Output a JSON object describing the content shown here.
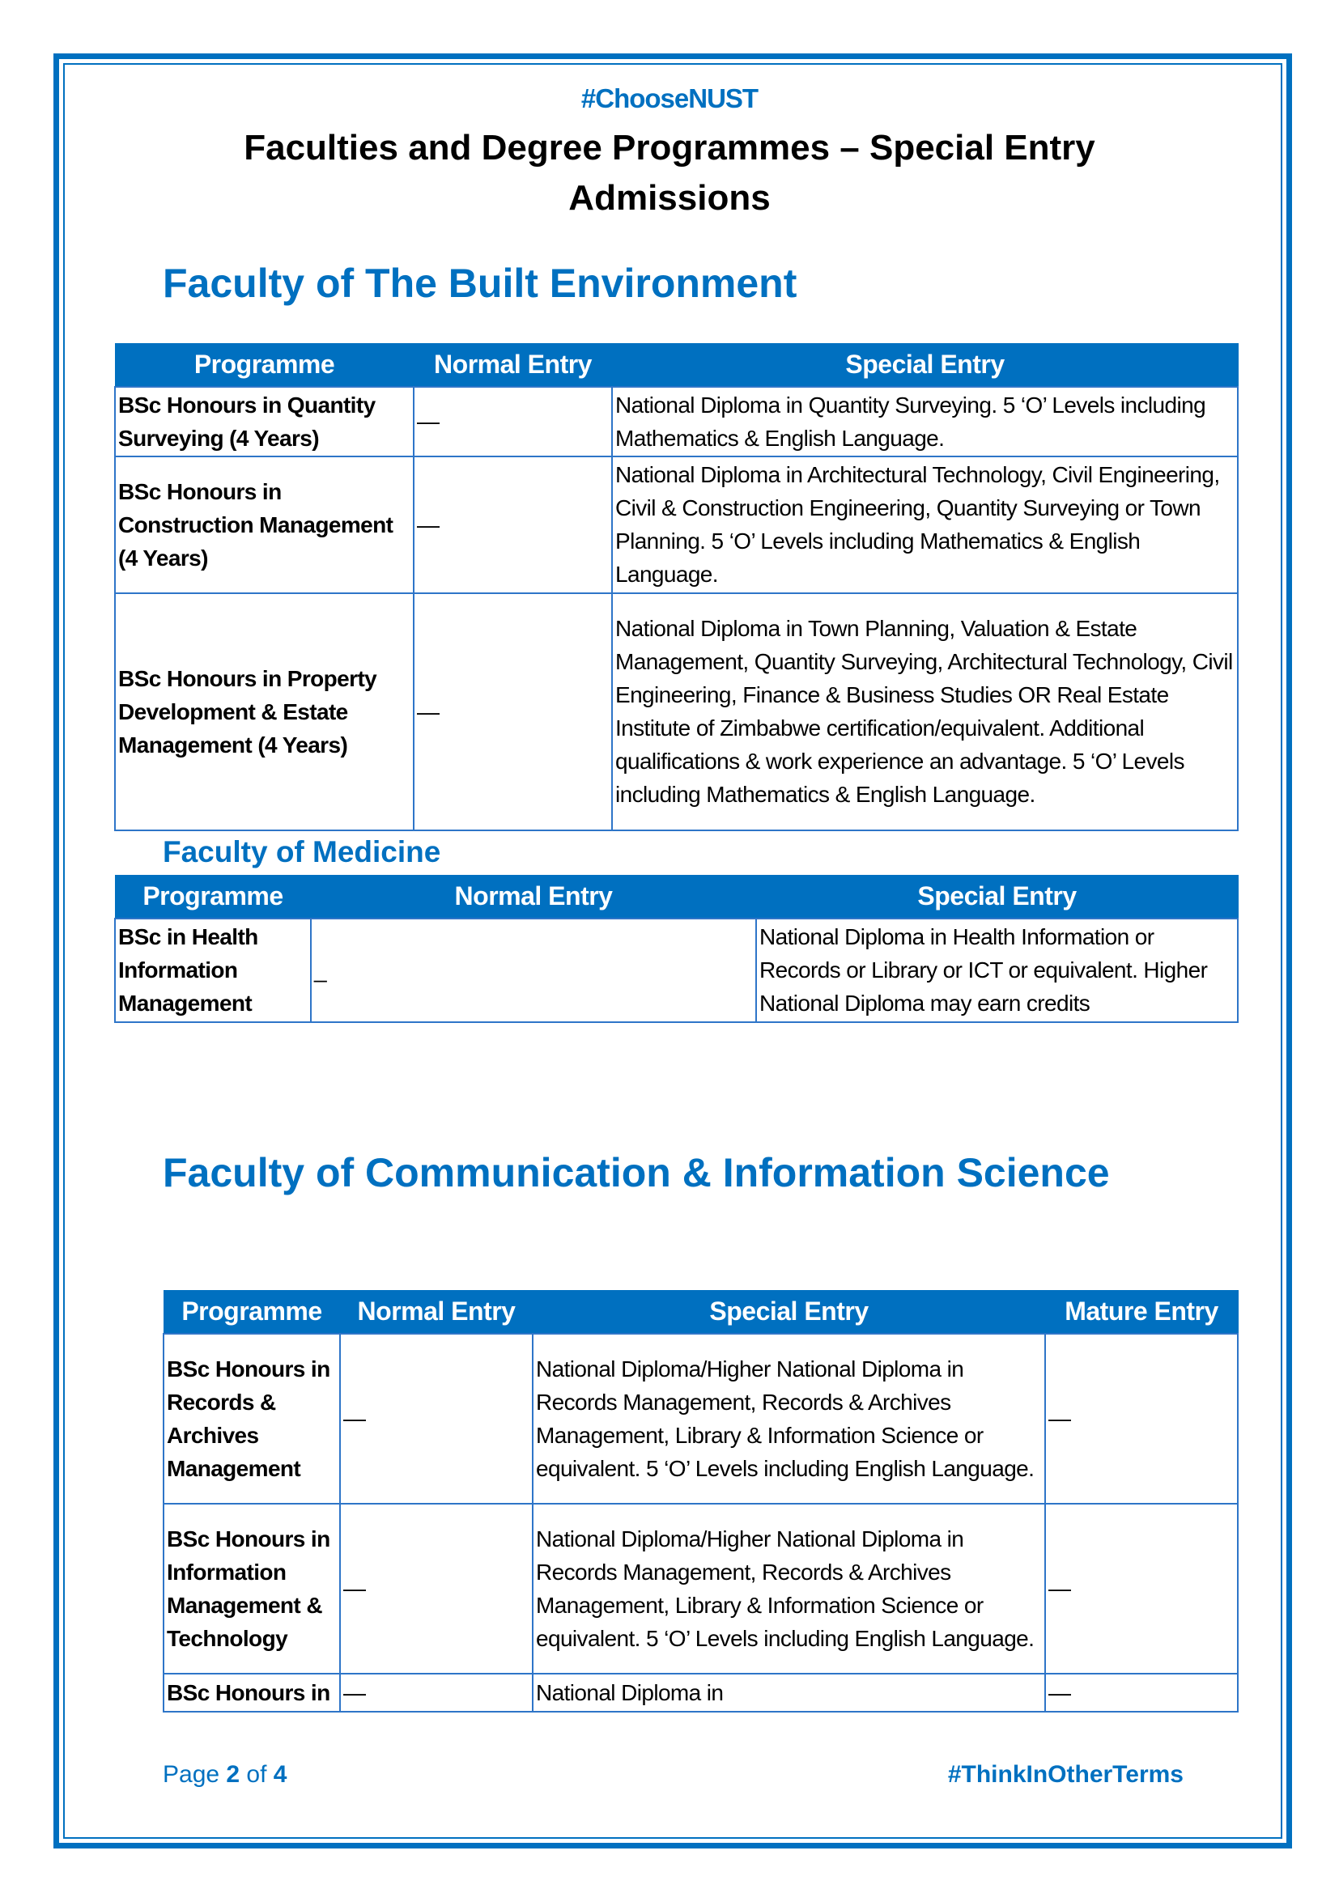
{
  "header": {
    "hashtag": "#ChooseNUST",
    "title": "Faculties and Degree Programmes – Special Entry Admissions"
  },
  "built_env": {
    "heading": "Faculty of The Built Environment",
    "columns": [
      "Programme",
      "Normal Entry",
      "Special Entry"
    ],
    "rows": [
      {
        "programme": "BSc Honours in Quantity Surveying (4 Years)",
        "normal": "—",
        "special": "National Diploma in Quantity Surveying. 5 ‘O’ Levels including Mathematics & English Language."
      },
      {
        "programme": "BSc Honours in Construction Management (4 Years)",
        "normal": "—",
        "special": "National Diploma in Architectural Technology, Civil Engineering, Civil & Construction Engineering, Quantity Surveying or Town Planning. 5 ‘O’ Levels including Mathematics & English Language."
      },
      {
        "programme": "BSc Honours in Property Development & Estate Management (4 Years)",
        "normal": "—",
        "special": "National Diploma in Town Planning, Valuation & Estate Management, Quantity Surveying, Architectural Technology, Civil Engineering, Finance & Business Studies OR Real Estate Institute of Zimbabwe certification/equivalent. Additional qualifications & work experience an advantage. 5 ‘O’ Levels including Mathematics & English Language."
      }
    ]
  },
  "medicine": {
    "heading": "Faculty of Medicine",
    "columns": [
      "Programme",
      "Normal Entry",
      "Special Entry"
    ],
    "rows": [
      {
        "programme": "BSc in Health Information Management",
        "normal": "_",
        "special": "National Diploma in Health Information or Records or Library or ICT or equivalent. Higher National Diploma may earn credits"
      }
    ]
  },
  "comm_info": {
    "heading": "Faculty of Communication & Information Science",
    "columns": [
      "Programme",
      "Normal Entry",
      "Special Entry",
      "Mature Entry"
    ],
    "rows": [
      {
        "programme": "BSc Honours in Records & Archives Management",
        "normal": "—",
        "special": "National Diploma/Higher National Diploma in Records Management, Records & Archives Management, Library & Information Science or equivalent. 5 ‘O’ Levels including English Language.",
        "mature": "—"
      },
      {
        "programme": "BSc Honours in Information Management & Technology",
        "normal": "—",
        "special": "National Diploma/Higher National Diploma in Records Management, Records & Archives Management, Library & Information Science or equivalent. 5 ‘O’ Levels including English Language.",
        "mature": "—"
      },
      {
        "programme": "BSc Honours in",
        "normal": "—",
        "special": "National Diploma in",
        "mature": "—"
      }
    ]
  },
  "footer": {
    "page_prefix": "Page ",
    "page_current": "2",
    "page_of": " of ",
    "page_total": "4",
    "hashtag": "#ThinkInOtherTerms"
  },
  "colors": {
    "accent": "#0070c0"
  }
}
